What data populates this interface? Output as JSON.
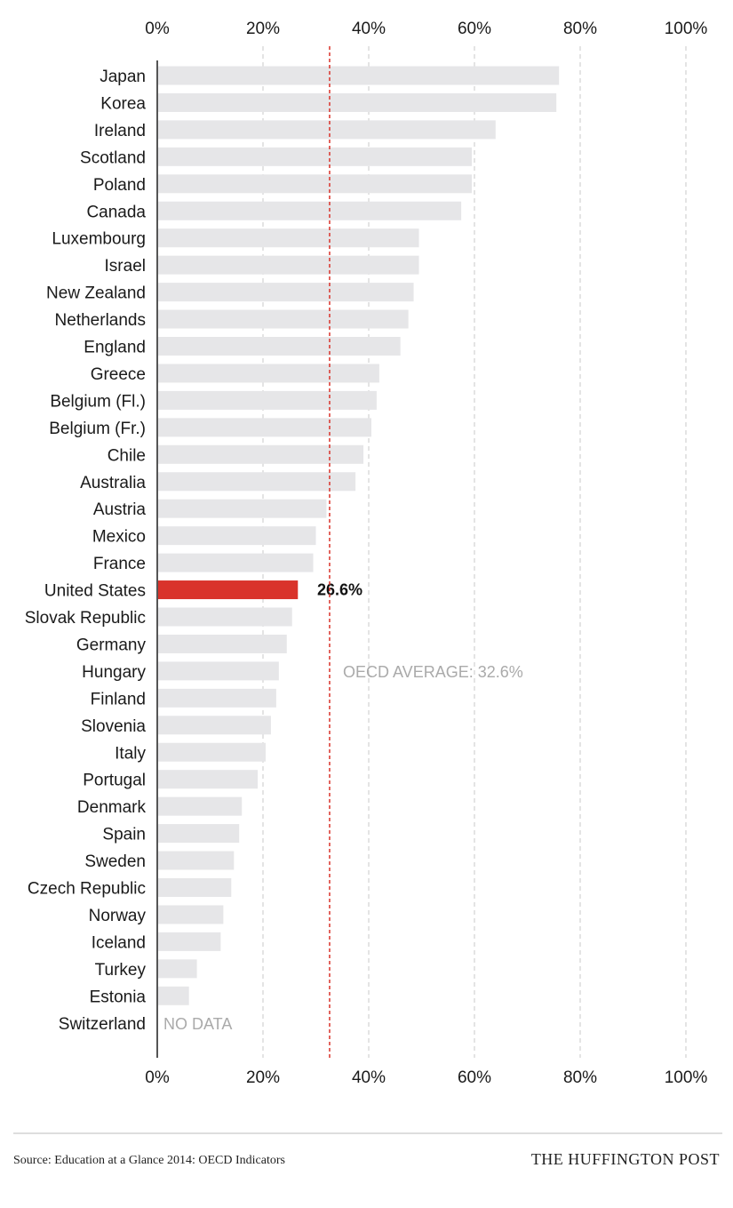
{
  "chart_data": {
    "type": "bar",
    "orientation": "horizontal",
    "title": "",
    "xlabel": "",
    "ylabel": "",
    "xlim": [
      0,
      100
    ],
    "x_ticks": [
      "0%",
      "20%",
      "40%",
      "60%",
      "80%",
      "100%"
    ],
    "categories": [
      "Japan",
      "Korea",
      "Ireland",
      "Scotland",
      "Poland",
      "Canada",
      "Luxembourg",
      "Israel",
      "New Zealand",
      "Netherlands",
      "England",
      "Greece",
      "Belgium (Fl.)",
      "Belgium (Fr.)",
      "Chile",
      "Australia",
      "Austria",
      "Mexico",
      "France",
      "United States",
      "Slovak Republic",
      "Germany",
      "Hungary",
      "Finland",
      "Slovenia",
      "Italy",
      "Portugal",
      "Denmark",
      "Spain",
      "Sweden",
      "Czech Republic",
      "Norway",
      "Iceland",
      "Turkey",
      "Estonia",
      "Switzerland"
    ],
    "values": [
      76,
      75.5,
      64,
      59.5,
      59.5,
      57.5,
      49.5,
      49.5,
      48.5,
      47.5,
      46,
      42,
      41.5,
      40.5,
      39,
      37.5,
      32,
      30,
      29.5,
      26.6,
      25.5,
      24.5,
      23,
      22.5,
      21.5,
      20.5,
      19,
      16,
      15.5,
      14.5,
      14,
      12.5,
      12,
      7.5,
      6,
      null
    ],
    "highlight": {
      "category": "United States",
      "label": "26.6%",
      "color": "#d9332b"
    },
    "bar_color": "#e6e6e8",
    "grid_color": "#c8c8c8",
    "reference_line": {
      "value": 32.6,
      "label": "OECD AVERAGE: 32.6%",
      "color": "#d9332b"
    },
    "no_data_label": "NO DATA"
  },
  "footer": {
    "source": "Source: Education at a Glance 2014: OECD Indicators",
    "brand": "THE HUFFINGTON POST"
  }
}
